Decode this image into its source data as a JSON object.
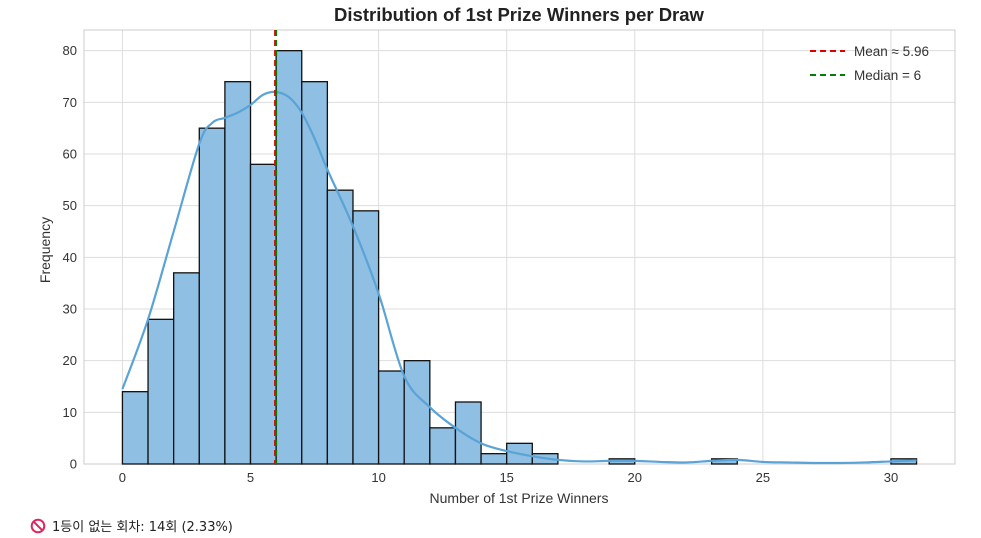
{
  "chart_data": {
    "type": "bar",
    "title": "Distribution of 1st Prize Winners per Draw",
    "xlabel": "Number of 1st Prize Winners",
    "ylabel": "Frequency",
    "xlim": [
      -1.5,
      32.5
    ],
    "ylim": [
      0,
      84
    ],
    "xticks": [
      0,
      5,
      10,
      15,
      20,
      25,
      30
    ],
    "yticks": [
      0,
      10,
      20,
      30,
      40,
      50,
      60,
      70,
      80
    ],
    "grid": true,
    "bar_color": "#8fbfe3",
    "bar_edge_color": "#111111",
    "kde_color": "#5aa3d6",
    "bins": [
      {
        "x0": 0,
        "x1": 1,
        "count": 14
      },
      {
        "x0": 1,
        "x1": 2,
        "count": 28
      },
      {
        "x0": 2,
        "x1": 3,
        "count": 37
      },
      {
        "x0": 3,
        "x1": 4,
        "count": 65
      },
      {
        "x0": 4,
        "x1": 5,
        "count": 74
      },
      {
        "x0": 5,
        "x1": 6,
        "count": 58
      },
      {
        "x0": 6,
        "x1": 7,
        "count": 80
      },
      {
        "x0": 7,
        "x1": 8,
        "count": 74
      },
      {
        "x0": 8,
        "x1": 9,
        "count": 53
      },
      {
        "x0": 9,
        "x1": 10,
        "count": 49
      },
      {
        "x0": 10,
        "x1": 11,
        "count": 18
      },
      {
        "x0": 11,
        "x1": 12,
        "count": 20
      },
      {
        "x0": 12,
        "x1": 13,
        "count": 7
      },
      {
        "x0": 13,
        "x1": 14,
        "count": 12
      },
      {
        "x0": 14,
        "x1": 15,
        "count": 2
      },
      {
        "x0": 15,
        "x1": 16,
        "count": 4
      },
      {
        "x0": 16,
        "x1": 17,
        "count": 2
      },
      {
        "x0": 19,
        "x1": 20,
        "count": 1
      },
      {
        "x0": 23,
        "x1": 24,
        "count": 1
      },
      {
        "x0": 30,
        "x1": 31,
        "count": 1
      }
    ],
    "kde": {
      "x": [
        0,
        1,
        2,
        3,
        3.5,
        4,
        4.5,
        5,
        5.5,
        6,
        6.5,
        7,
        7.5,
        8,
        9,
        10,
        11,
        12,
        13,
        14,
        15,
        16,
        17,
        18,
        19,
        20,
        21,
        22,
        23,
        24,
        25,
        26,
        27,
        28,
        29,
        30,
        31
      ],
      "y": [
        14.5,
        28,
        45,
        62,
        66,
        67,
        68,
        69.5,
        71.5,
        72,
        71,
        68,
        63,
        57,
        46,
        33,
        17,
        11,
        7,
        4,
        2.5,
        1.5,
        0.8,
        0.5,
        0.6,
        0.6,
        0.4,
        0.3,
        0.6,
        0.8,
        0.4,
        0.3,
        0.2,
        0.2,
        0.3,
        0.5,
        0.7
      ]
    },
    "reference_lines": [
      {
        "name": "Mean ≈ 5.96",
        "x": 5.96,
        "color": "#dd0000"
      },
      {
        "name": "Median = 6",
        "x": 6,
        "color": "#008000"
      }
    ],
    "legend_position": "top-right"
  },
  "footer_note": {
    "icon": "prohibited-icon",
    "text": "1등이 없는 회차: 14회 (2.33%)"
  }
}
